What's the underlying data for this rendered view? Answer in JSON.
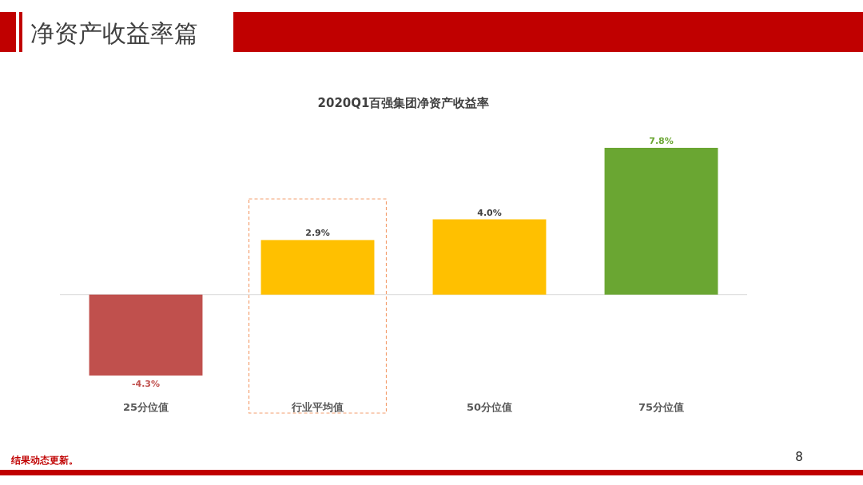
{
  "chart_data": {
    "type": "bar",
    "title": "2020Q1百强集团净资产收益率",
    "categories": [
      "25分位值",
      "行业平均值",
      "50分位值",
      "75分位值"
    ],
    "values": [
      -4.3,
      2.9,
      4.0,
      7.8
    ],
    "colors": [
      "#c0504d",
      "#ffc000",
      "#ffc000",
      "#6aa632"
    ],
    "value_labels": [
      "-4.3%",
      "2.9%",
      "4.0%",
      "7.8%"
    ],
    "tick_labels": "x",
    "annotations": [
      "净资产收益率篇",
      "结果动态更新。",
      "8"
    ]
  }
}
